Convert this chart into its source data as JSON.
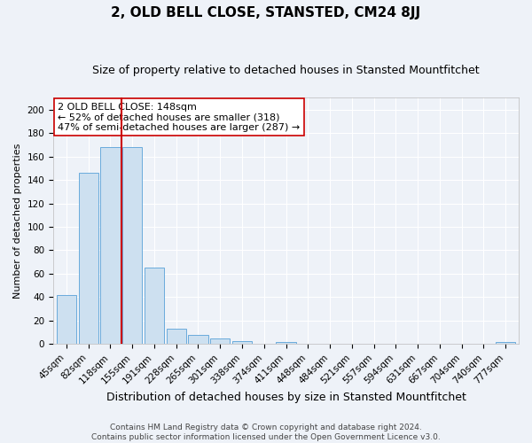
{
  "title1": "2, OLD BELL CLOSE, STANSTED, CM24 8JJ",
  "title2": "Size of property relative to detached houses in Stansted Mountfitchet",
  "xlabel": "Distribution of detached houses by size in Stansted Mountfitchet",
  "ylabel": "Number of detached properties",
  "bar_labels": [
    "45sqm",
    "82sqm",
    "118sqm",
    "155sqm",
    "191sqm",
    "228sqm",
    "265sqm",
    "301sqm",
    "338sqm",
    "374sqm",
    "411sqm",
    "448sqm",
    "484sqm",
    "521sqm",
    "557sqm",
    "594sqm",
    "631sqm",
    "667sqm",
    "704sqm",
    "740sqm",
    "777sqm"
  ],
  "bar_values": [
    42,
    146,
    168,
    168,
    65,
    13,
    8,
    5,
    3,
    0,
    2,
    0,
    0,
    0,
    0,
    0,
    0,
    0,
    0,
    0,
    2
  ],
  "bar_color": "#cde0f0",
  "bar_edge_color": "#6aabdc",
  "marker_color": "#cc0000",
  "annotation_text": "2 OLD BELL CLOSE: 148sqm\n← 52% of detached houses are smaller (318)\n47% of semi-detached houses are larger (287) →",
  "annotation_box_color": "#ffffff",
  "annotation_box_edge": "#cc0000",
  "ylim": [
    0,
    210
  ],
  "yticks": [
    0,
    20,
    40,
    60,
    80,
    100,
    120,
    140,
    160,
    180,
    200
  ],
  "footer1": "Contains HM Land Registry data © Crown copyright and database right 2024.",
  "footer2": "Contains public sector information licensed under the Open Government Licence v3.0.",
  "background_color": "#eef2f8",
  "grid_color": "#ffffff",
  "title1_fontsize": 11,
  "title2_fontsize": 9,
  "xlabel_fontsize": 9,
  "ylabel_fontsize": 8,
  "tick_fontsize": 7.5,
  "footer_fontsize": 6.5,
  "annotation_fontsize": 8
}
